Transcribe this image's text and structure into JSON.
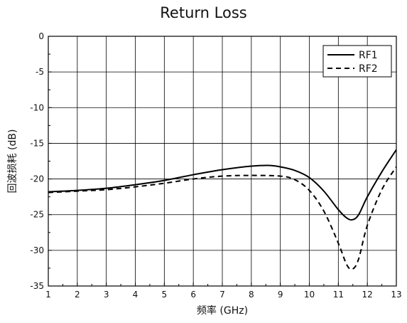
{
  "chart_data": {
    "type": "line",
    "title": "Return Loss",
    "xlabel": "频率 (GHz)",
    "ylabel": "回波损耗 (dB)",
    "xlim": [
      1,
      13
    ],
    "ylim": [
      -35,
      0
    ],
    "xticks": [
      1,
      2,
      3,
      4,
      5,
      6,
      7,
      8,
      9,
      10,
      11,
      12,
      13
    ],
    "yticks": [
      0,
      -5,
      -10,
      -15,
      -20,
      -25,
      -30,
      -35
    ],
    "grid": true,
    "legend_position": "top-right",
    "series": [
      {
        "name": "RF1",
        "style": "solid",
        "color": "#000000",
        "x": [
          1,
          2,
          3,
          4,
          5,
          6,
          7,
          8,
          8.6,
          9,
          9.5,
          10,
          10.5,
          11,
          11.3,
          11.5,
          11.7,
          12,
          12.5,
          13
        ],
        "y": [
          -21.8,
          -21.6,
          -21.3,
          -20.8,
          -20.2,
          -19.4,
          -18.7,
          -18.2,
          -18.1,
          -18.3,
          -18.8,
          -19.8,
          -21.7,
          -24.3,
          -25.5,
          -25.7,
          -25.0,
          -22.5,
          -19.0,
          -15.9
        ]
      },
      {
        "name": "RF2",
        "style": "dashed",
        "color": "#000000",
        "x": [
          1,
          2,
          3,
          4,
          5,
          6,
          7,
          8,
          9,
          9.5,
          10,
          10.5,
          11,
          11.3,
          11.5,
          11.7,
          12,
          12.5,
          13
        ],
        "y": [
          -21.9,
          -21.7,
          -21.5,
          -21.1,
          -20.6,
          -20.0,
          -19.6,
          -19.5,
          -19.6,
          -20.1,
          -21.6,
          -24.5,
          -29.0,
          -32.1,
          -32.6,
          -31.2,
          -26.5,
          -21.5,
          -18.3
        ]
      }
    ]
  }
}
